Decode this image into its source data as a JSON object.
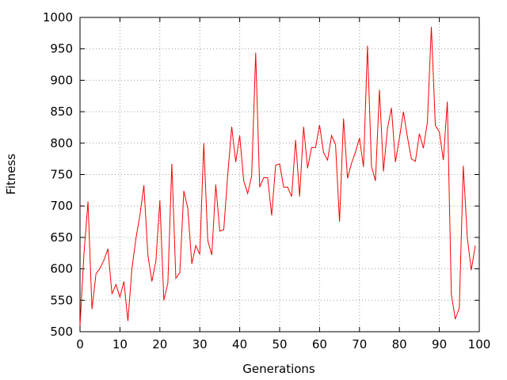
{
  "chart_data": {
    "type": "line",
    "title": "",
    "xlabel": "Generations",
    "ylabel": "Fitness",
    "xlim": [
      0,
      100
    ],
    "ylim": [
      500,
      1000
    ],
    "xticks": [
      0,
      10,
      20,
      30,
      40,
      50,
      60,
      70,
      80,
      90,
      100
    ],
    "yticks": [
      500,
      550,
      600,
      650,
      700,
      750,
      800,
      850,
      900,
      950,
      1000
    ],
    "grid": true,
    "line_color": "#ff0000",
    "series": [
      {
        "x": [
          0,
          1,
          2,
          3,
          4,
          5,
          6,
          7,
          8,
          9,
          10,
          11,
          12,
          13,
          14,
          15,
          16,
          17,
          18,
          19,
          20,
          21,
          22,
          23,
          24,
          25,
          26,
          27,
          28,
          29,
          30,
          31,
          32,
          33,
          34,
          35,
          36,
          37,
          38,
          39,
          40,
          41,
          42,
          43,
          44,
          45,
          46,
          47,
          48,
          49,
          50,
          51,
          52,
          53,
          54,
          55,
          56,
          57,
          58,
          59,
          60,
          61,
          62,
          63,
          64,
          65,
          66,
          67,
          68,
          69,
          70,
          71,
          72,
          73,
          74,
          75,
          76,
          77,
          78,
          79,
          80,
          81,
          82,
          83,
          84,
          85,
          86,
          87,
          88,
          89,
          90,
          91,
          92,
          93,
          94,
          95,
          96,
          97,
          98,
          99
        ],
        "y": [
          510,
          625,
          707,
          536,
          592,
          601,
          614,
          632,
          560,
          575,
          555,
          580,
          517,
          600,
          648,
          685,
          733,
          622,
          580,
          612,
          709,
          550,
          577,
          767,
          585,
          594,
          724,
          696,
          608,
          637,
          623,
          800,
          645,
          622,
          734,
          660,
          662,
          750,
          826,
          770,
          812,
          740,
          720,
          748,
          944,
          730,
          745,
          745,
          685,
          765,
          767,
          730,
          730,
          715,
          805,
          715,
          826,
          760,
          793,
          793,
          829,
          785,
          773,
          812,
          798,
          675,
          839,
          744,
          768,
          786,
          808,
          762,
          955,
          763,
          740,
          885,
          755,
          823,
          856,
          770,
          808,
          850,
          810,
          775,
          771,
          815,
          792,
          833,
          985,
          828,
          818,
          773,
          866,
          560,
          520,
          538,
          764,
          650,
          598,
          637
        ]
      }
    ]
  }
}
